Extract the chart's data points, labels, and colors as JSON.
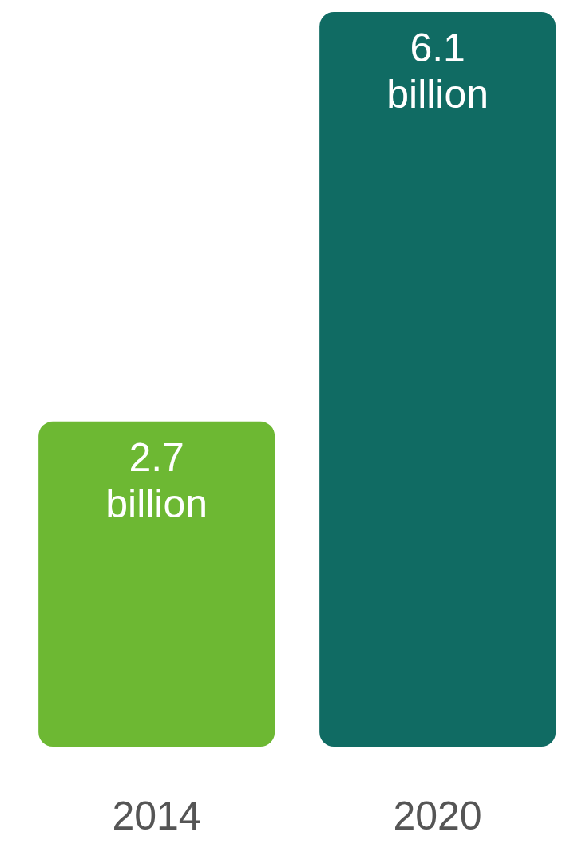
{
  "chart_data": {
    "type": "bar",
    "categories": [
      "2014",
      "2020"
    ],
    "values": [
      2.7,
      6.1
    ],
    "colors": [
      "#6db833",
      "#106b63"
    ],
    "value_labels": [
      "2.7 billion",
      "6.1 billion"
    ]
  }
}
